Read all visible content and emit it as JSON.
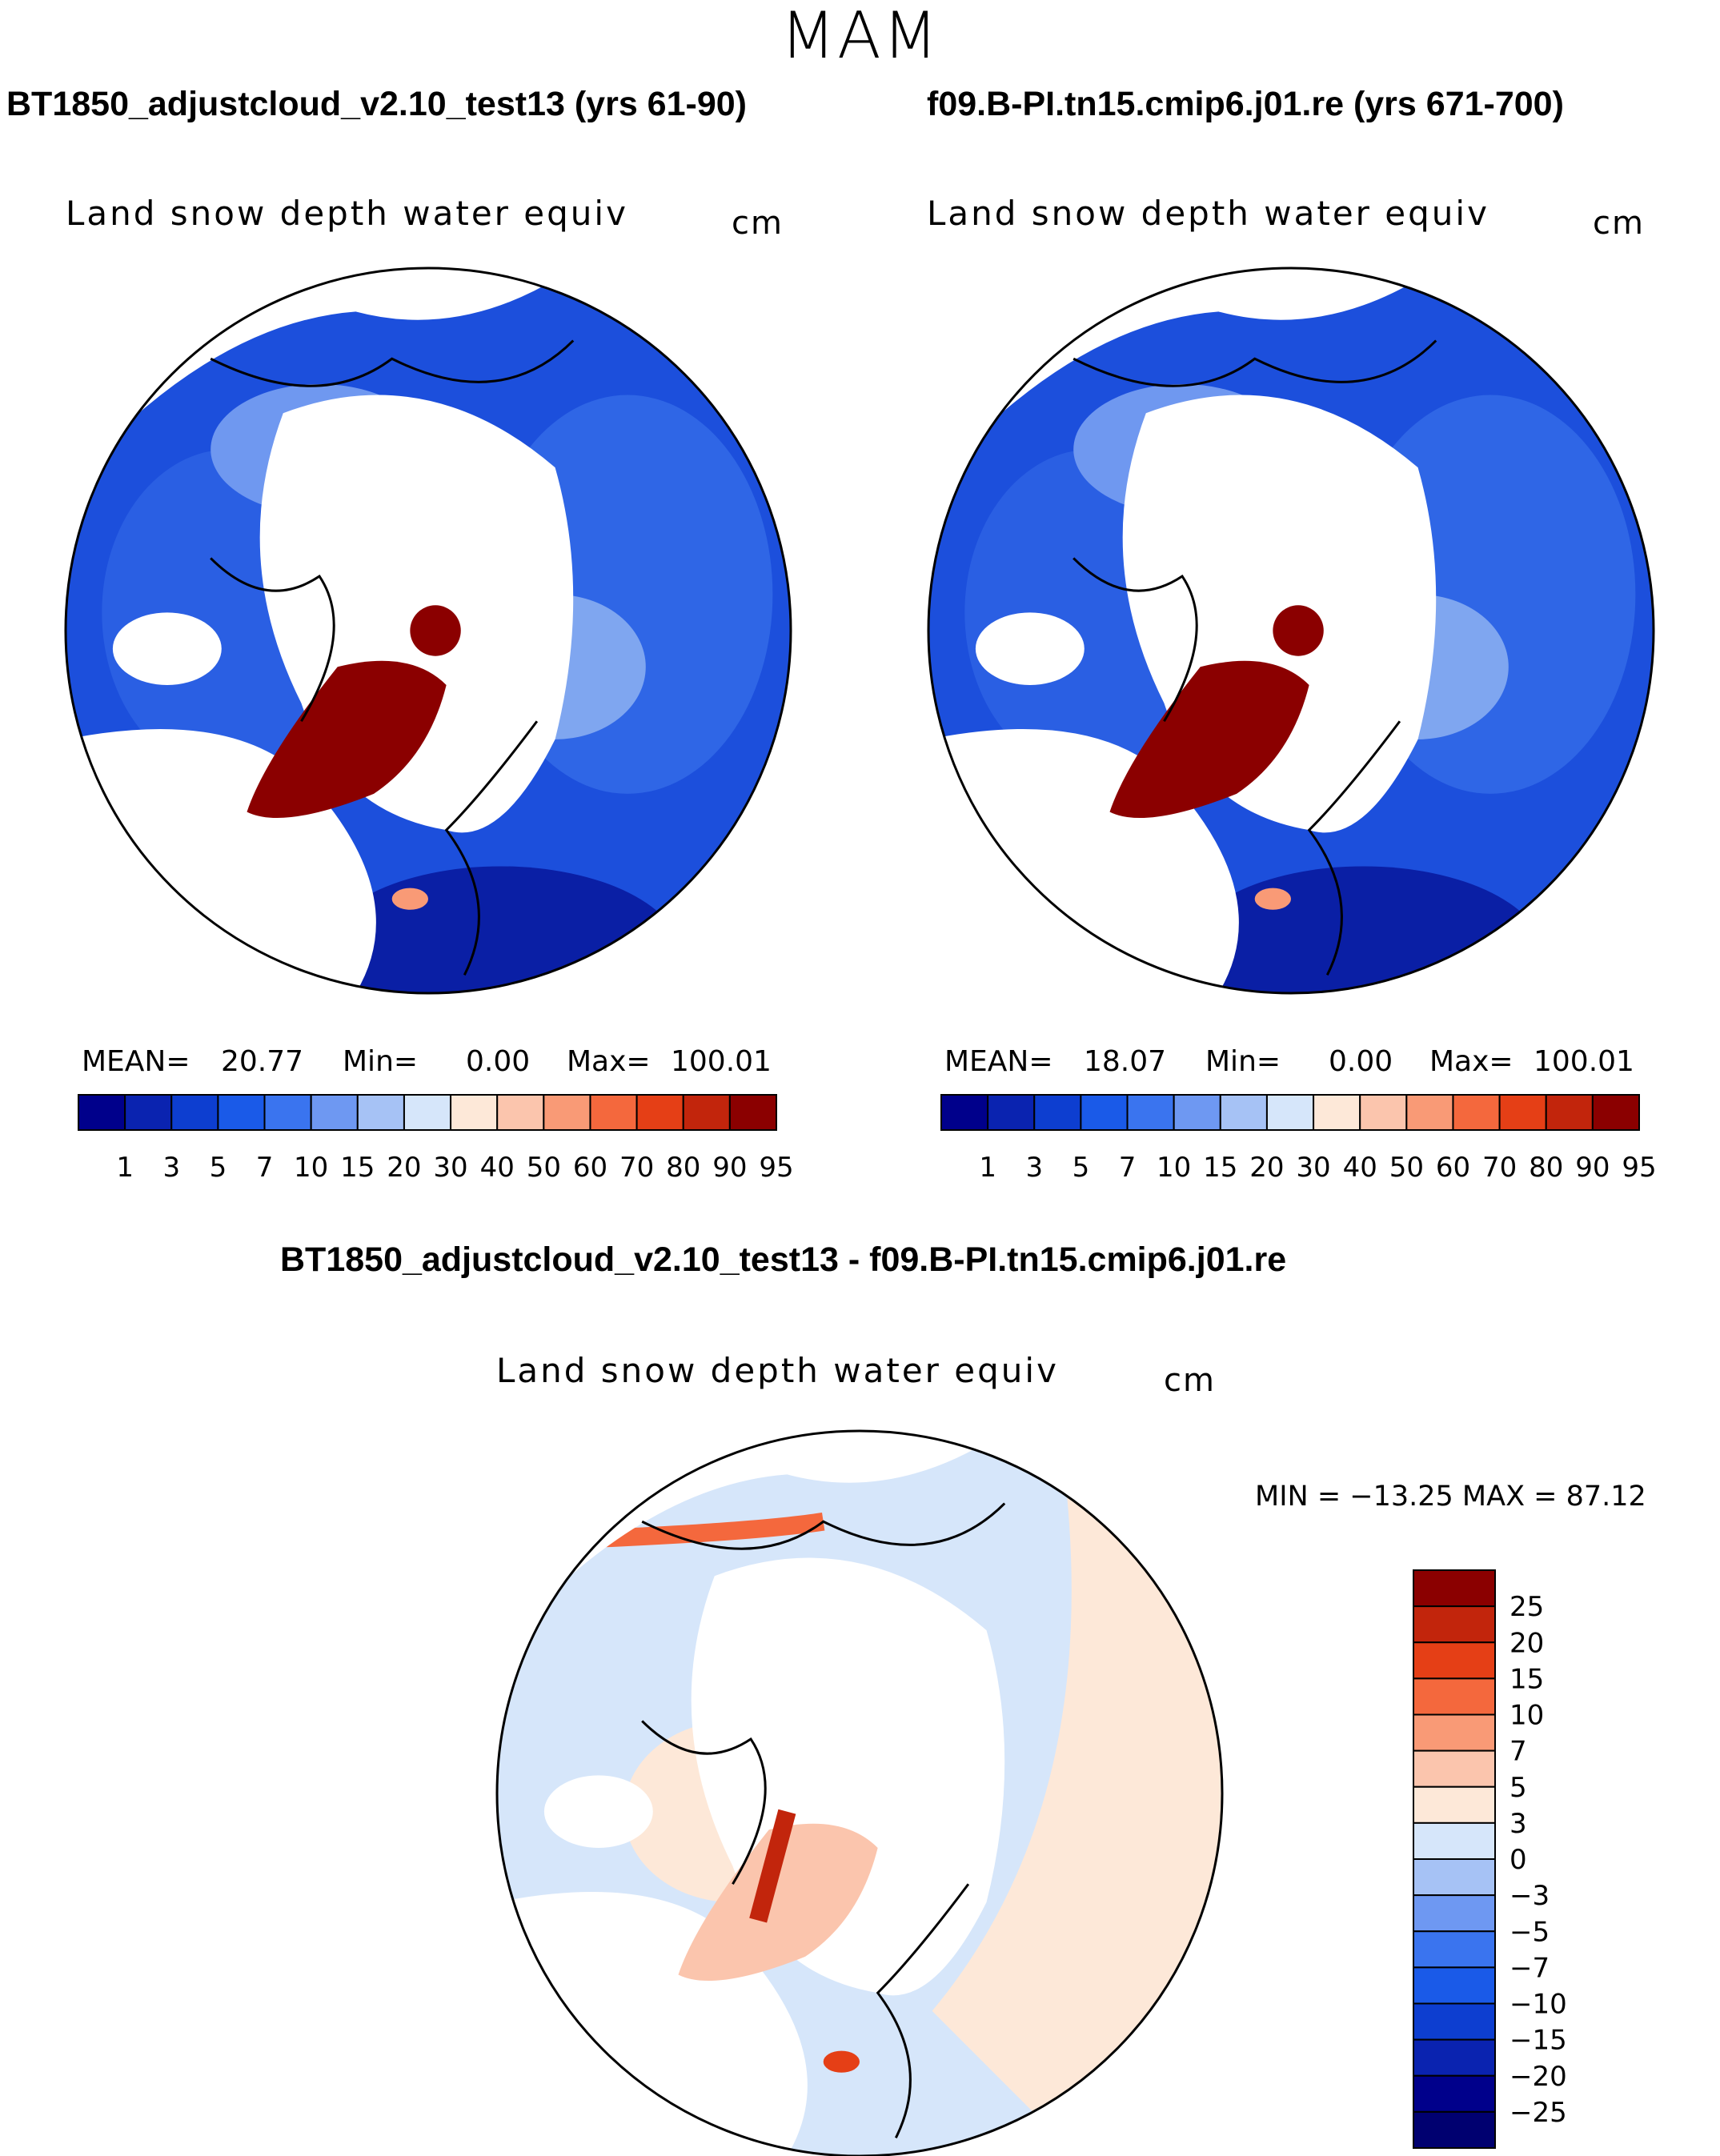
{
  "season": "MAM",
  "panels": [
    {
      "case_title": "BT1850_adjustcloud_v2.10_test13 (yrs 61-90)",
      "plot_title": "Land snow depth water equiv",
      "units": "cm",
      "stats": {
        "mean_label": "MEAN=",
        "mean": "20.77",
        "min_label": "Min=",
        "min": "0.00",
        "max_label": "Max=",
        "max": "100.01"
      }
    },
    {
      "case_title": "f09.B-PI.tn15.cmip6.j01.re (yrs 671-700)",
      "plot_title": "Land snow depth water equiv",
      "units": "cm",
      "stats": {
        "mean_label": "MEAN=",
        "mean": "18.07",
        "min_label": "Min=",
        "min": "0.00",
        "max_label": "Max=",
        "max": "100.01"
      }
    }
  ],
  "diff": {
    "title": "BT1850_adjustcloud_v2.10_test13 - f09.B-PI.tn15.cmip6.j01.re",
    "plot_title": "Land snow depth water equiv",
    "units": "cm",
    "minmax": "MIN = −13.25 MAX =   87.12"
  },
  "chart_data": [
    {
      "type": "heatmap",
      "projection": "north polar stereographic",
      "title": "Land snow depth water equiv",
      "units": "cm",
      "mean": 20.77,
      "min": 0.0,
      "max": 100.01,
      "colorbar": {
        "levels": [
          "1",
          "3",
          "5",
          "7",
          "10",
          "15",
          "20",
          "30",
          "40",
          "50",
          "60",
          "70",
          "80",
          "90",
          "95"
        ],
        "colors": [
          "#00008b",
          "#0a23b0",
          "#0d3ed0",
          "#1a5ae8",
          "#3a74ef",
          "#6e98f2",
          "#a6c2f5",
          "#d6e6fa",
          "#fde8d8",
          "#fbc5ad",
          "#f99a76",
          "#f4683d",
          "#e53f16",
          "#c2250c",
          "#8b0000"
        ]
      }
    },
    {
      "type": "heatmap",
      "projection": "north polar stereographic",
      "title": "Land snow depth water equiv",
      "units": "cm",
      "mean": 18.07,
      "min": 0.0,
      "max": 100.01,
      "colorbar": {
        "levels": [
          "1",
          "3",
          "5",
          "7",
          "10",
          "15",
          "20",
          "30",
          "40",
          "50",
          "60",
          "70",
          "80",
          "90",
          "95"
        ],
        "colors": [
          "#00008b",
          "#0a23b0",
          "#0d3ed0",
          "#1a5ae8",
          "#3a74ef",
          "#6e98f2",
          "#a6c2f5",
          "#d6e6fa",
          "#fde8d8",
          "#fbc5ad",
          "#f99a76",
          "#f4683d",
          "#e53f16",
          "#c2250c",
          "#8b0000"
        ]
      }
    },
    {
      "type": "heatmap",
      "projection": "north polar stereographic",
      "title": "Land snow depth water equiv",
      "units": "cm",
      "min": -13.25,
      "max": 87.12,
      "colorbar": {
        "levels": [
          "25",
          "20",
          "15",
          "10",
          "7",
          "5",
          "3",
          "0",
          "−3",
          "−5",
          "−7",
          "−10",
          "−15",
          "−20",
          "−25"
        ],
        "colors": [
          "#8b0000",
          "#c2250c",
          "#e53f16",
          "#f4683d",
          "#f99a76",
          "#fbc5ad",
          "#fde8d8",
          "#d6e6fa",
          "#a6c2f5",
          "#6e98f2",
          "#3a74ef",
          "#1a5ae8",
          "#0d3ed0",
          "#0a23b0",
          "#00008b",
          "#000070"
        ]
      }
    }
  ]
}
